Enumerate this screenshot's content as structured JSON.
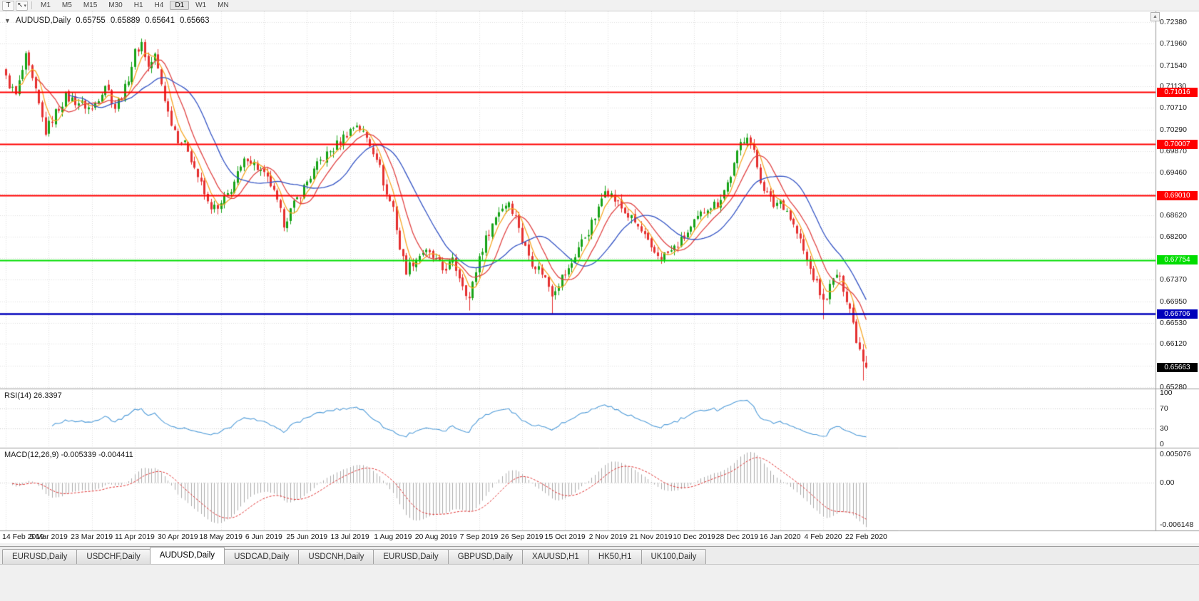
{
  "toolbar": {
    "t_label": "T",
    "cursor_icon": "↖",
    "dropdown_icon": "▾",
    "timeframes": [
      "M1",
      "M5",
      "M15",
      "M30",
      "H1",
      "H4",
      "D1",
      "W1",
      "MN"
    ],
    "active_timeframe": "D1"
  },
  "chart_header": {
    "collapse_icon": "▼",
    "symbol_title": "AUDUSD,Daily",
    "open": "0.65755",
    "high": "0.65889",
    "low": "0.65641",
    "close": "0.65663"
  },
  "misc": {
    "scroll_up_icon": "▲"
  },
  "price_axis_labels": [
    "0.72380",
    "0.71960",
    "0.71540",
    "0.71130",
    "0.70710",
    "0.70290",
    "0.69870",
    "0.69460",
    "0.69040",
    "0.68620",
    "0.68200",
    "0.67790",
    "0.67370",
    "0.66950",
    "0.66530",
    "0.66120",
    "0.65700",
    "0.65280"
  ],
  "date_axis_labels": [
    "14 Feb 2019",
    "5 Mar 2019",
    "23 Mar 2019",
    "11 Apr 2019",
    "30 Apr 2019",
    "18 May 2019",
    "6 Jun 2019",
    "25 Jun 2019",
    "13 Jul 2019",
    "1 Aug 2019",
    "20 Aug 2019",
    "7 Sep 2019",
    "26 Sep 2019",
    "15 Oct 2019",
    "2 Nov 2019",
    "21 Nov 2019",
    "10 Dec 2019",
    "28 Dec 2019",
    "16 Jan 2020",
    "4 Feb 2020",
    "22 Feb 2020"
  ],
  "rsi_panel": {
    "label": "RSI(14) 26.3397",
    "value": "26.3397",
    "period": 14,
    "axis_labels": [
      "100",
      "70",
      "30",
      "0"
    ],
    "line_color": "#4f9bd8"
  },
  "macd_panel": {
    "label": "MACD(12,26,9) -0.005339 -0.004411",
    "macd_value": "-0.005339",
    "signal_value": "-0.004411",
    "axis_labels": [
      "0.005076",
      "0.00",
      "-0.006148"
    ],
    "histogram_color": "#ababab",
    "signal_color": "#e03030"
  },
  "bottom_tabs": {
    "active_index": 2,
    "tabs": [
      "EURUSD,Daily",
      "USDCHF,Daily",
      "AUDUSD,Daily",
      "USDCAD,Daily",
      "USDCNH,Daily",
      "EURUSD,Daily",
      "GBPUSD,Daily",
      "XAUUSD,H1",
      "HK50,H1",
      "UK100,Daily"
    ]
  },
  "chart_data": {
    "type": "candlestick",
    "symbol": "AUDUSD",
    "timeframe": "Daily",
    "title": "AUDUSD,Daily",
    "last_candle": {
      "open": 0.65755,
      "high": 0.65889,
      "low": 0.65641,
      "close": 0.65663
    },
    "price_range": [
      0.6528,
      0.7238
    ],
    "num_candles": 261,
    "up_color": "#17a317",
    "down_color": "#e53030",
    "noise_amplitude": 0.002,
    "price_path_anchors": [
      [
        0,
        0.7128
      ],
      [
        3,
        0.7095
      ],
      [
        6,
        0.7168
      ],
      [
        9,
        0.71
      ],
      [
        12,
        0.7025
      ],
      [
        15,
        0.7062
      ],
      [
        18,
        0.7092
      ],
      [
        22,
        0.7082
      ],
      [
        26,
        0.7068
      ],
      [
        30,
        0.7118
      ],
      [
        33,
        0.7072
      ],
      [
        36,
        0.7108
      ],
      [
        39,
        0.7178
      ],
      [
        41,
        0.7198
      ],
      [
        43,
        0.715
      ],
      [
        45,
        0.7172
      ],
      [
        47,
        0.7118
      ],
      [
        49,
        0.7062
      ],
      [
        52,
        0.7012
      ],
      [
        55,
        0.6992
      ],
      [
        58,
        0.6938
      ],
      [
        61,
        0.6885
      ],
      [
        64,
        0.6872
      ],
      [
        67,
        0.6902
      ],
      [
        70,
        0.694
      ],
      [
        73,
        0.6977
      ],
      [
        76,
        0.6955
      ],
      [
        80,
        0.6922
      ],
      [
        84,
        0.6848
      ],
      [
        87,
        0.6882
      ],
      [
        91,
        0.6928
      ],
      [
        95,
        0.6968
      ],
      [
        99,
        0.6992
      ],
      [
        103,
        0.7022
      ],
      [
        106,
        0.704
      ],
      [
        109,
        0.7012
      ],
      [
        112,
        0.6978
      ],
      [
        115,
        0.6902
      ],
      [
        117,
        0.6878
      ],
      [
        119,
        0.6798
      ],
      [
        121,
        0.6756
      ],
      [
        123,
        0.6772
      ],
      [
        126,
        0.6792
      ],
      [
        129,
        0.678
      ],
      [
        132,
        0.6756
      ],
      [
        135,
        0.6772
      ],
      [
        138,
        0.673
      ],
      [
        140,
        0.67
      ],
      [
        143,
        0.6782
      ],
      [
        146,
        0.6832
      ],
      [
        149,
        0.6872
      ],
      [
        152,
        0.689
      ],
      [
        155,
        0.6842
      ],
      [
        156,
        0.6812
      ],
      [
        159,
        0.6772
      ],
      [
        162,
        0.6752
      ],
      [
        165,
        0.6712
      ],
      [
        168,
        0.6742
      ],
      [
        170,
        0.6755
      ],
      [
        173,
        0.68
      ],
      [
        176,
        0.6832
      ],
      [
        179,
        0.6872
      ],
      [
        181,
        0.6918
      ],
      [
        184,
        0.6892
      ],
      [
        187,
        0.6868
      ],
      [
        190,
        0.6848
      ],
      [
        193,
        0.682
      ],
      [
        195,
        0.6792
      ],
      [
        198,
        0.6782
      ],
      [
        201,
        0.6792
      ],
      [
        204,
        0.6812
      ],
      [
        207,
        0.6836
      ],
      [
        209,
        0.6855
      ],
      [
        212,
        0.688
      ],
      [
        215,
        0.6885
      ],
      [
        218,
        0.6925
      ],
      [
        220,
        0.6958
      ],
      [
        222,
        0.7002
      ],
      [
        224,
        0.7022
      ],
      [
        226,
        0.6982
      ],
      [
        228,
        0.6932
      ],
      [
        230,
        0.6902
      ],
      [
        232,
        0.6882
      ],
      [
        234,
        0.6892
      ],
      [
        236,
        0.6872
      ],
      [
        238,
        0.6842
      ],
      [
        240,
        0.6812
      ],
      [
        242,
        0.6772
      ],
      [
        244,
        0.6742
      ],
      [
        246,
        0.6712
      ],
      [
        247,
        0.6692
      ],
      [
        249,
        0.6722
      ],
      [
        251,
        0.6748
      ],
      [
        253,
        0.6722
      ],
      [
        255,
        0.6682
      ],
      [
        257,
        0.6622
      ],
      [
        259,
        0.6585
      ],
      [
        260,
        0.65663
      ]
    ],
    "wick_overrides": [
      [
        41,
        "high",
        0.7206
      ],
      [
        84,
        "low",
        0.6832
      ],
      [
        140,
        "low",
        0.6677
      ],
      [
        165,
        "low",
        0.667
      ],
      [
        247,
        "low",
        0.666
      ],
      [
        259,
        "low",
        0.6541
      ]
    ],
    "horizontal_lines": [
      {
        "price": 0.71016,
        "label": "0.71016",
        "color": "#ff0000",
        "text_color": "#ffffff",
        "width": 2
      },
      {
        "price": 0.70007,
        "label": "0.70007",
        "color": "#ff0000",
        "text_color": "#ffffff",
        "width": 2
      },
      {
        "price": 0.6901,
        "label": "0.69010",
        "color": "#ff0000",
        "text_color": "#ffffff",
        "width": 2
      },
      {
        "price": 0.67754,
        "label": "0.67754",
        "color": "#00dd00",
        "text_color": "#ffffff",
        "width": 2
      },
      {
        "price": 0.66706,
        "label": "0.66706",
        "color": "#0000bb",
        "text_color": "#ffffff",
        "width": 2.5
      }
    ],
    "current_price_badge": {
      "price": 0.65663,
      "label": "0.65663",
      "color": "#000000",
      "text_color": "#ffffff"
    },
    "moving_averages": [
      {
        "name": "ma-fast",
        "period": 5,
        "color": "#f6a623"
      },
      {
        "name": "ma-mid",
        "period": 10,
        "color": "#e04343"
      },
      {
        "name": "ma-slow",
        "period": 20,
        "color": "#3353c4"
      }
    ],
    "rsi": {
      "period": 14
    },
    "macd": {
      "fast": 12,
      "slow": 26,
      "signal": 9
    }
  }
}
